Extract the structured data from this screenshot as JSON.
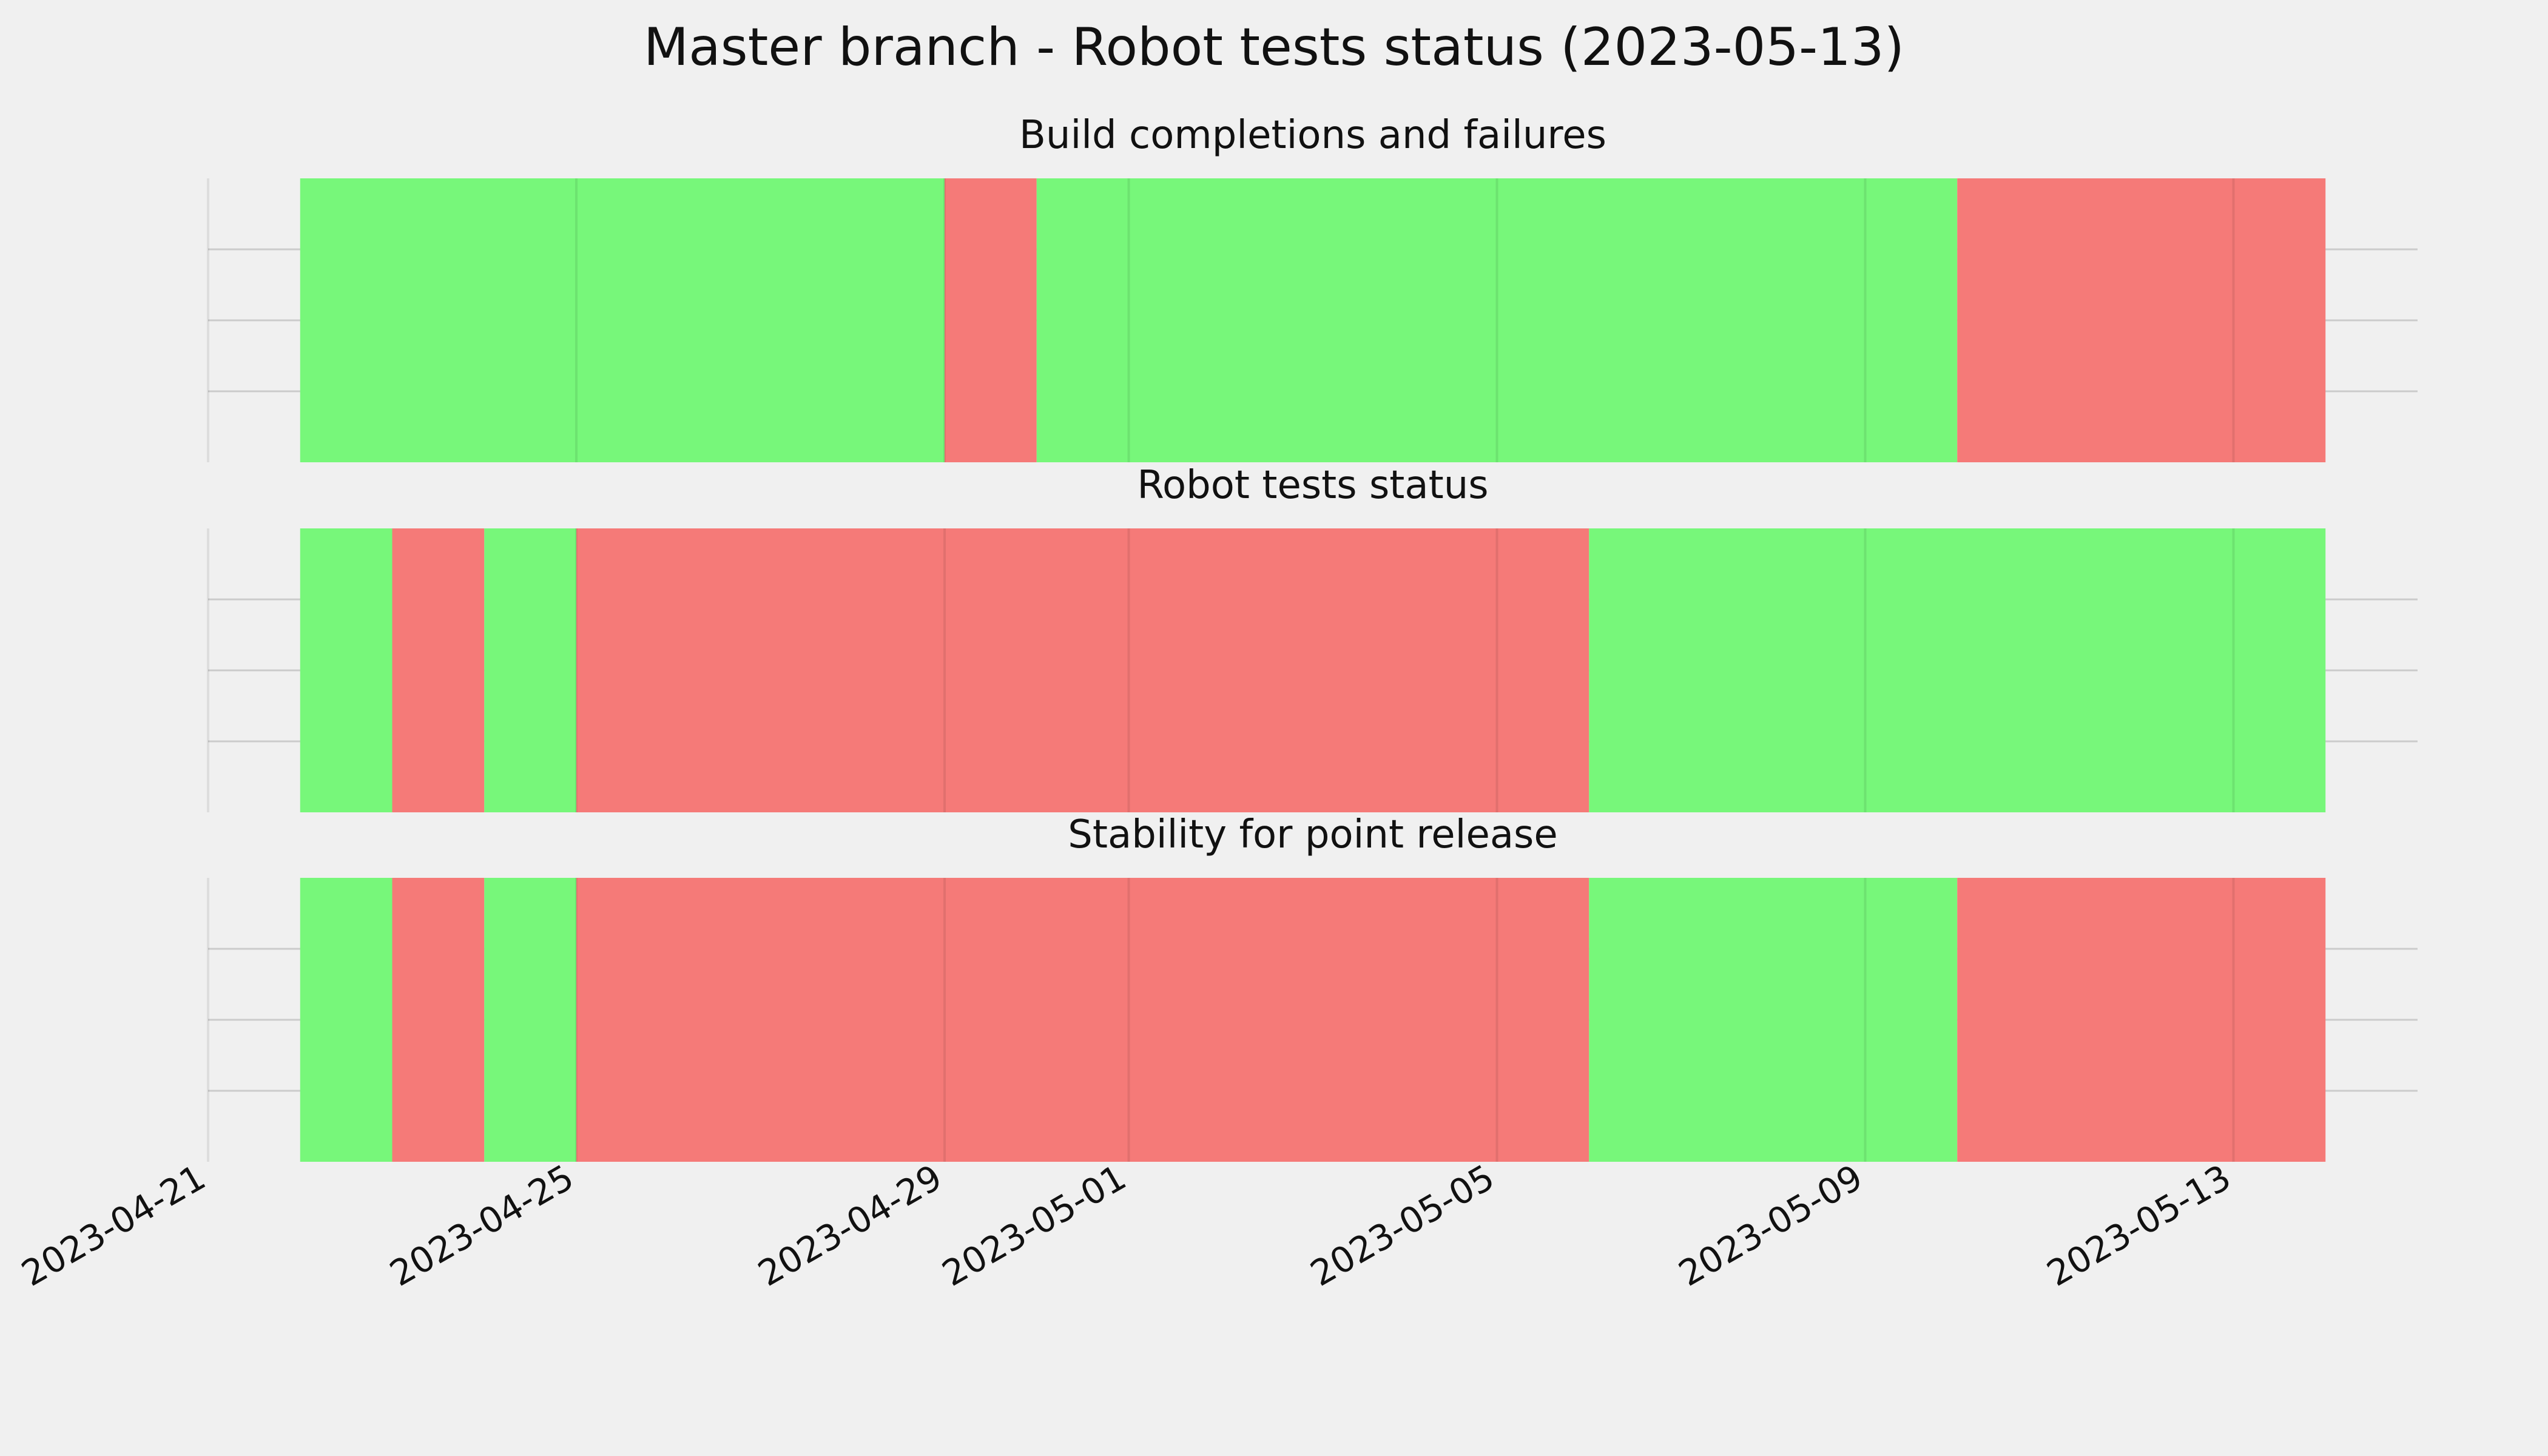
{
  "chart_data": {
    "type": "bar",
    "title": "Master branch - Robot tests status (2023-05-13)",
    "x_axis": {
      "type": "date",
      "range": [
        "2023-04-21",
        "2023-05-15"
      ],
      "tick_labels": [
        "2023-04-21",
        "2023-04-25",
        "2023-04-29",
        "2023-05-01",
        "2023-05-05",
        "2023-05-09",
        "2023-05-13"
      ]
    },
    "y_axis": {
      "tick_labels_shown": false
    },
    "grid": true,
    "colors": {
      "pass": "#77f77a",
      "fail": "#f57a78",
      "background": "#f0f0f0",
      "grid": "#cbcbcb"
    },
    "panels": [
      {
        "title": "Build completions and failures",
        "segments": [
          {
            "start": "2023-04-22",
            "end": "2023-04-29",
            "status": "pass"
          },
          {
            "start": "2023-04-29",
            "end": "2023-04-30",
            "status": "fail"
          },
          {
            "start": "2023-04-30",
            "end": "2023-05-10",
            "status": "pass"
          },
          {
            "start": "2023-05-10",
            "end": "2023-05-14",
            "status": "fail"
          }
        ]
      },
      {
        "title": "Robot tests status",
        "segments": [
          {
            "start": "2023-04-22",
            "end": "2023-04-23",
            "status": "pass"
          },
          {
            "start": "2023-04-23",
            "end": "2023-04-24",
            "status": "fail"
          },
          {
            "start": "2023-04-24",
            "end": "2023-04-25",
            "status": "pass"
          },
          {
            "start": "2023-04-25",
            "end": "2023-05-06",
            "status": "fail"
          },
          {
            "start": "2023-05-06",
            "end": "2023-05-14",
            "status": "pass"
          }
        ]
      },
      {
        "title": "Stability for point release",
        "segments": [
          {
            "start": "2023-04-22",
            "end": "2023-04-23",
            "status": "pass"
          },
          {
            "start": "2023-04-23",
            "end": "2023-04-24",
            "status": "fail"
          },
          {
            "start": "2023-04-24",
            "end": "2023-04-25",
            "status": "pass"
          },
          {
            "start": "2023-04-25",
            "end": "2023-05-06",
            "status": "fail"
          },
          {
            "start": "2023-05-06",
            "end": "2023-05-10",
            "status": "pass"
          },
          {
            "start": "2023-05-10",
            "end": "2023-05-14",
            "status": "fail"
          }
        ]
      }
    ]
  }
}
